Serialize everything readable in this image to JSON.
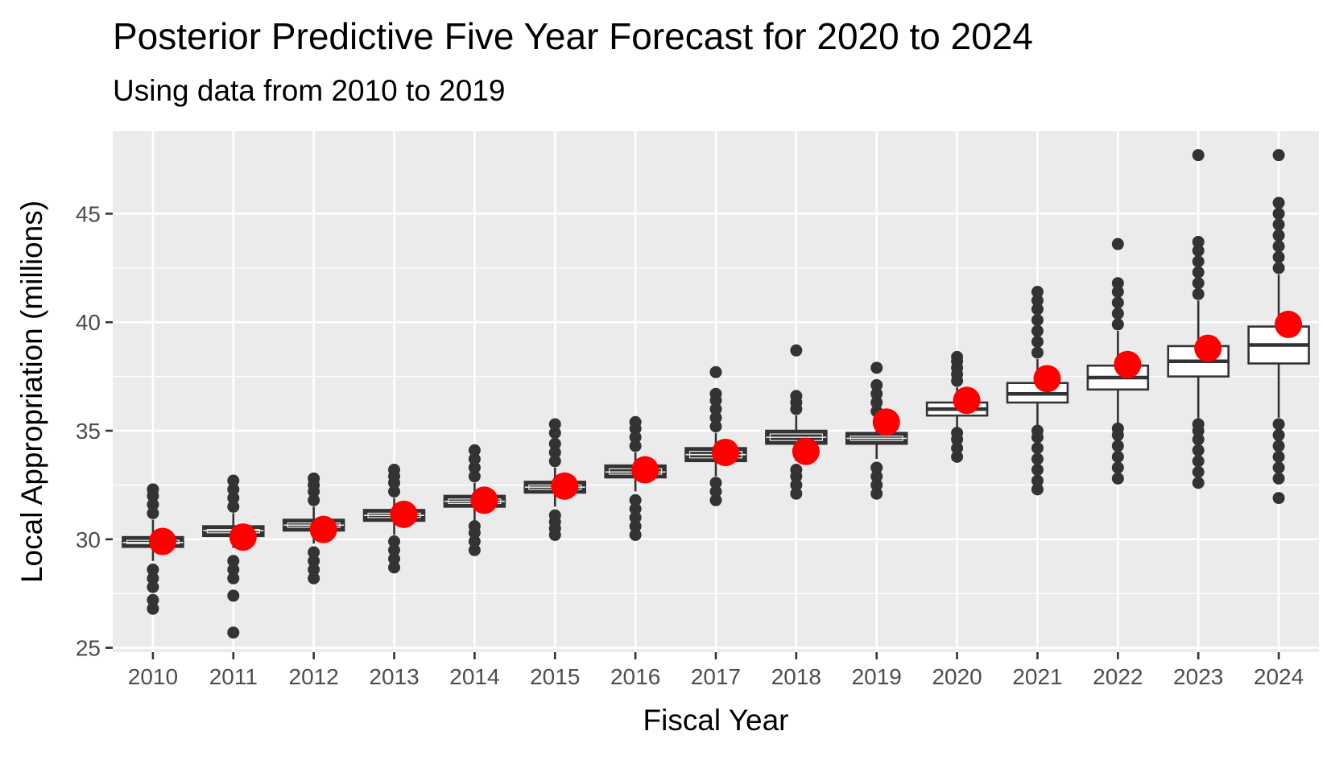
{
  "chart_data": {
    "type": "boxplot",
    "title": "Posterior Predictive Five Year Forecast for 2020 to 2024",
    "subtitle": "Using data from 2010 to 2019",
    "xlabel": "Fiscal Year",
    "ylabel": "Local Appropriation (millions)",
    "ylim": [
      24.8,
      48.8
    ],
    "yticks": [
      25,
      30,
      35,
      40,
      45
    ],
    "categories": [
      "2010",
      "2011",
      "2012",
      "2013",
      "2014",
      "2015",
      "2016",
      "2017",
      "2018",
      "2019",
      "2020",
      "2021",
      "2022",
      "2023",
      "2024"
    ],
    "box_fill": [
      "#333333",
      "#333333",
      "#333333",
      "#333333",
      "#333333",
      "#333333",
      "#333333",
      "#333333",
      "#333333",
      "#333333",
      "#ffffff",
      "#ffffff",
      "#ffffff",
      "#ffffff",
      "#ffffff"
    ],
    "boxes": [
      {
        "q1": 29.65,
        "median": 29.85,
        "q3": 30.1,
        "whisker_low": 29.0,
        "whisker_high": 30.9,
        "outliers_low": [
          26.8,
          27.2,
          27.8,
          28.2,
          28.6
        ],
        "outliers_high": [
          31.2,
          31.6,
          32.0,
          32.3
        ]
      },
      {
        "q1": 30.15,
        "median": 30.4,
        "q3": 30.6,
        "whisker_low": 29.6,
        "whisker_high": 31.2,
        "outliers_low": [
          25.7,
          27.4,
          28.2,
          28.6,
          29.0
        ],
        "outliers_high": [
          31.5,
          31.9,
          32.3,
          32.7
        ]
      },
      {
        "q1": 30.4,
        "median": 30.65,
        "q3": 30.9,
        "whisker_low": 29.8,
        "whisker_high": 31.5,
        "outliers_low": [
          28.2,
          28.6,
          29.0,
          29.4
        ],
        "outliers_high": [
          31.8,
          32.2,
          32.5,
          32.8
        ]
      },
      {
        "q1": 30.85,
        "median": 31.1,
        "q3": 31.35,
        "whisker_low": 30.2,
        "whisker_high": 31.9,
        "outliers_low": [
          28.7,
          29.1,
          29.5,
          29.9
        ],
        "outliers_high": [
          32.2,
          32.6,
          32.9,
          33.2
        ]
      },
      {
        "q1": 31.5,
        "median": 31.75,
        "q3": 32.0,
        "whisker_low": 30.8,
        "whisker_high": 32.6,
        "outliers_low": [
          29.5,
          29.9,
          30.3,
          30.6
        ],
        "outliers_high": [
          32.9,
          33.3,
          33.7,
          34.1
        ]
      },
      {
        "q1": 32.15,
        "median": 32.4,
        "q3": 32.65,
        "whisker_low": 31.5,
        "whisker_high": 33.3,
        "outliers_low": [
          30.2,
          30.5,
          30.8,
          31.1
        ],
        "outliers_high": [
          33.6,
          34.0,
          34.4,
          34.9,
          35.3
        ]
      },
      {
        "q1": 32.85,
        "median": 33.1,
        "q3": 33.4,
        "whisker_low": 32.2,
        "whisker_high": 34.0,
        "outliers_low": [
          30.2,
          30.6,
          31.0,
          31.4,
          31.8
        ],
        "outliers_high": [
          34.3,
          34.7,
          35.1,
          35.4
        ]
      },
      {
        "q1": 33.6,
        "median": 33.9,
        "q3": 34.2,
        "whisker_low": 32.9,
        "whisker_high": 34.9,
        "outliers_low": [
          31.8,
          32.2,
          32.6
        ],
        "outliers_high": [
          35.2,
          35.6,
          36.0,
          36.4,
          36.7,
          37.7
        ]
      },
      {
        "q1": 34.4,
        "median": 34.7,
        "q3": 35.0,
        "whisker_low": 33.6,
        "whisker_high": 35.7,
        "outliers_low": [
          32.1,
          32.5,
          32.9,
          33.2
        ],
        "outliers_high": [
          36.0,
          36.3,
          36.6,
          38.7
        ]
      },
      {
        "q1": 34.4,
        "median": 34.65,
        "q3": 34.9,
        "whisker_low": 33.7,
        "whisker_high": 35.6,
        "outliers_low": [
          32.1,
          32.5,
          32.9,
          33.3
        ],
        "outliers_high": [
          35.9,
          36.3,
          36.7,
          37.1,
          37.9
        ]
      },
      {
        "q1": 35.7,
        "median": 36.0,
        "q3": 36.3,
        "whisker_low": 35.0,
        "whisker_high": 37.0,
        "outliers_low": [
          33.8,
          34.2,
          34.6,
          34.9
        ],
        "outliers_high": [
          37.3,
          37.6,
          37.9,
          38.2,
          38.4
        ]
      },
      {
        "q1": 36.3,
        "median": 36.7,
        "q3": 37.2,
        "whisker_low": 35.1,
        "whisker_high": 38.3,
        "outliers_low": [
          32.3,
          32.7,
          33.2,
          33.7,
          34.2,
          34.7,
          35.0
        ],
        "outliers_high": [
          38.6,
          39.1,
          39.6,
          40.1,
          40.6,
          41.0,
          41.4
        ]
      },
      {
        "q1": 36.9,
        "median": 37.45,
        "q3": 38.0,
        "whisker_low": 35.2,
        "whisker_high": 39.6,
        "outliers_low": [
          32.8,
          33.3,
          33.8,
          34.3,
          34.8,
          35.1
        ],
        "outliers_high": [
          39.9,
          40.4,
          40.9,
          41.4,
          41.8,
          43.6
        ]
      },
      {
        "q1": 37.5,
        "median": 38.2,
        "q3": 38.9,
        "whisker_low": 35.5,
        "whisker_high": 41.0,
        "outliers_low": [
          32.6,
          33.1,
          33.6,
          34.1,
          34.6,
          35.0,
          35.3
        ],
        "outliers_high": [
          41.3,
          41.8,
          42.3,
          42.8,
          43.3,
          43.7,
          47.7
        ]
      },
      {
        "q1": 38.1,
        "median": 38.95,
        "q3": 39.8,
        "whisker_low": 35.6,
        "whisker_high": 42.2,
        "outliers_low": [
          31.9,
          32.8,
          33.3,
          33.8,
          34.3,
          34.8,
          35.3
        ],
        "outliers_high": [
          42.5,
          43.0,
          43.5,
          44.0,
          44.5,
          45.0,
          45.5,
          47.7
        ]
      }
    ],
    "observed_points": [
      {
        "x": "2010",
        "y": 29.9
      },
      {
        "x": "2011",
        "y": 30.1
      },
      {
        "x": "2012",
        "y": 30.45
      },
      {
        "x": "2013",
        "y": 31.15
      },
      {
        "x": "2014",
        "y": 31.8
      },
      {
        "x": "2015",
        "y": 32.45
      },
      {
        "x": "2016",
        "y": 33.2
      },
      {
        "x": "2017",
        "y": 34.0
      },
      {
        "x": "2018",
        "y": 34.05
      },
      {
        "x": "2019",
        "y": 35.4
      },
      {
        "x": "2020",
        "y": 36.4
      },
      {
        "x": "2021",
        "y": 37.4
      },
      {
        "x": "2022",
        "y": 38.05
      },
      {
        "x": "2023",
        "y": 38.8
      },
      {
        "x": "2024",
        "y": 39.9
      }
    ],
    "colors": {
      "panel_bg": "#ebebeb",
      "grid": "#ffffff",
      "box_line": "#333333",
      "outlier": "#333333",
      "observed": "#ff0000"
    }
  }
}
